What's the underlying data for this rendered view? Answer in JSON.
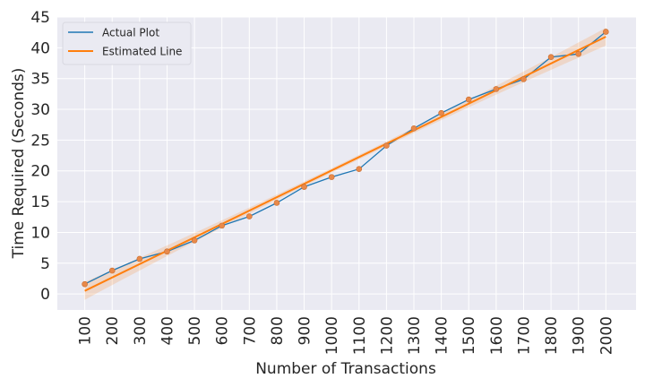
{
  "chart_data": {
    "type": "line",
    "xlabel": "Number of Transactions",
    "ylabel": "Time Required (Seconds)",
    "x": [
      100,
      200,
      300,
      400,
      500,
      600,
      700,
      800,
      900,
      1000,
      1100,
      1200,
      1300,
      1400,
      1500,
      1600,
      1700,
      1800,
      1900,
      2000
    ],
    "xticks": [
      "100",
      "200",
      "300",
      "400",
      "500",
      "600",
      "700",
      "800",
      "900",
      "1000",
      "1100",
      "1200",
      "1300",
      "1400",
      "1500",
      "1600",
      "1700",
      "1800",
      "1900",
      "2000"
    ],
    "yticks": [
      "0",
      "5",
      "10",
      "15",
      "20",
      "25",
      "30",
      "35",
      "40",
      "45"
    ],
    "ylim": [
      -2.6,
      45
    ],
    "xlim": [
      0,
      2110
    ],
    "grid": true,
    "legend_position": "top-left",
    "series": [
      {
        "name": "Actual Plot",
        "color": "#1f77b4",
        "values": [
          1.6,
          3.8,
          5.7,
          6.9,
          8.7,
          11.1,
          12.6,
          14.8,
          17.4,
          19.0,
          20.3,
          24.1,
          26.9,
          29.4,
          31.6,
          33.3,
          34.9,
          38.5,
          39.0,
          42.6
        ]
      },
      {
        "name": "Estimated Line",
        "color": "#ff7f0e",
        "type": "regression",
        "start": [
          100,
          0.5
        ],
        "end": [
          2000,
          41.8
        ]
      }
    ],
    "background": "#eaeaf2"
  }
}
